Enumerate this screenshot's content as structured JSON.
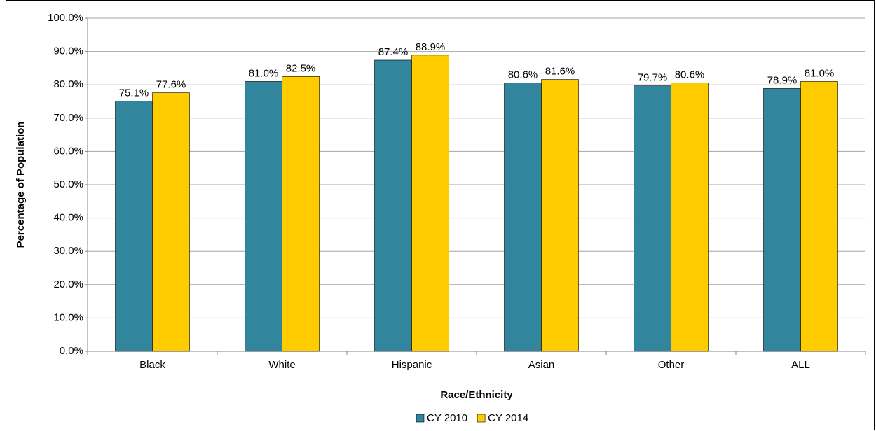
{
  "chart_data": {
    "type": "bar",
    "categories": [
      "Black",
      "White",
      "Hispanic",
      "Asian",
      "Other",
      "ALL"
    ],
    "series": [
      {
        "name": "CY 2010",
        "color": "#31859c",
        "values": [
          75.1,
          81.0,
          87.4,
          80.6,
          79.7,
          78.9
        ],
        "value_labels": [
          "75.1%",
          "81.0%",
          "87.4%",
          "80.6%",
          "79.7%",
          "78.9%"
        ]
      },
      {
        "name": "CY 2014",
        "color": "#ffcc00",
        "values": [
          77.6,
          82.5,
          88.9,
          81.6,
          80.6,
          81.0
        ],
        "value_labels": [
          "77.6%",
          "82.5%",
          "88.9%",
          "81.6%",
          "80.6%",
          "81.0%"
        ]
      }
    ],
    "xlabel": "Race/Ethnicity",
    "ylabel": "Percentage of Population",
    "ylim": [
      0,
      100
    ],
    "yticks": [
      {
        "value": 0,
        "label": "0.0%"
      },
      {
        "value": 10,
        "label": "10.0%"
      },
      {
        "value": 20,
        "label": "20.0%"
      },
      {
        "value": 30,
        "label": "30.0%"
      },
      {
        "value": 40,
        "label": "40.0%"
      },
      {
        "value": 50,
        "label": "50.0%"
      },
      {
        "value": 60,
        "label": "60.0%"
      },
      {
        "value": 70,
        "label": "70.0%"
      },
      {
        "value": 80,
        "label": "80.0%"
      },
      {
        "value": 90,
        "label": "90.0%"
      },
      {
        "value": 100,
        "label": "100.0%"
      }
    ],
    "grid": true,
    "legend": "bottom"
  }
}
